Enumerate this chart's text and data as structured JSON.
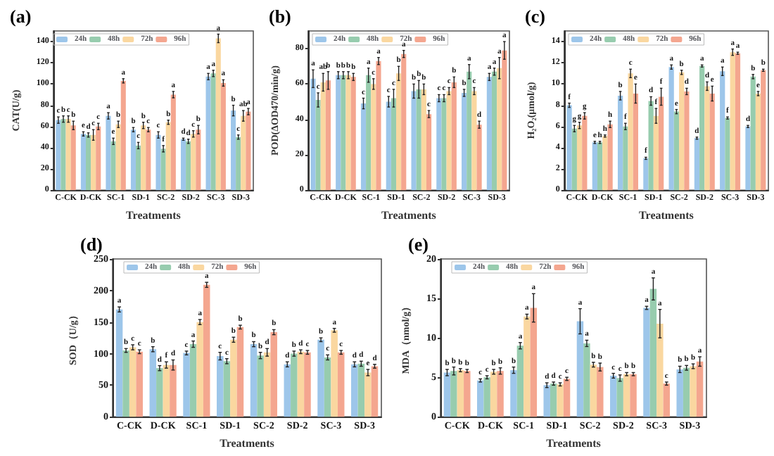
{
  "chart_data": [
    {
      "type": "bar",
      "title": "(a)",
      "xlabel": "Treatments",
      "ylabel": "CAT(U/g)",
      "categories": [
        "C-CK",
        "D-CK",
        "SC-1",
        "SD-1",
        "SC-2",
        "SD-2",
        "SC-3",
        "SD-3"
      ],
      "ylim": [
        0,
        150
      ],
      "yticks": [
        0,
        20,
        40,
        60,
        80,
        100,
        120,
        140
      ],
      "grid": false,
      "legend": "top left",
      "series": [
        {
          "name": "24h",
          "color": "#9dc6ea",
          "values": [
            66,
            53,
            70,
            57,
            52,
            48,
            107,
            75
          ],
          "errors": [
            3,
            2,
            3,
            2,
            3,
            1,
            3,
            5
          ],
          "value_labels": [
            "c",
            "e",
            "a",
            "b",
            "c",
            "d",
            "a",
            "b"
          ]
        },
        {
          "name": "48h",
          "color": "#97ccae",
          "values": [
            67,
            52,
            46,
            42,
            39,
            46,
            110,
            50
          ],
          "errors": [
            3,
            2,
            3,
            3,
            3,
            2,
            3,
            2
          ],
          "value_labels": [
            "b",
            "d",
            "e",
            "c",
            "f",
            "d",
            "a",
            "c"
          ]
        },
        {
          "name": "72h",
          "color": "#fad7a0",
          "values": [
            67,
            52,
            62,
            61,
            64,
            53,
            143,
            70
          ],
          "errors": [
            3,
            5,
            3,
            3,
            2,
            3,
            4,
            5
          ],
          "value_labels": [
            "c",
            "c",
            "b",
            "b",
            "b",
            "c",
            "a",
            "ab"
          ]
        },
        {
          "name": "96h",
          "color": "#f4a68f",
          "values": [
            61,
            60,
            103,
            57,
            90,
            57,
            101,
            74
          ],
          "errors": [
            4,
            3,
            2,
            2,
            3,
            4,
            3,
            3
          ],
          "value_labels": [
            "b",
            "c",
            "a",
            "c",
            "a",
            "b",
            "a",
            "a"
          ]
        }
      ]
    },
    {
      "type": "bar",
      "title": "(b)",
      "xlabel": "Treatments",
      "ylabel": "POD(ΔOD470/min/g)",
      "categories": [
        "C-CK",
        "D-CK",
        "SC-1",
        "SD-1",
        "SC-2",
        "SD-2",
        "SC-3",
        "SD-3"
      ],
      "ylim": [
        0,
        90
      ],
      "yticks": [
        0,
        20,
        40,
        60,
        80
      ],
      "grid": false,
      "legend": "top left",
      "series": [
        {
          "name": "24h",
          "color": "#9dc6ea",
          "values": [
            63,
            65,
            49,
            50,
            56,
            52,
            55,
            64
          ],
          "errors": [
            5,
            2,
            3,
            3,
            4,
            2,
            2,
            2
          ],
          "value_labels": [
            "a",
            "b",
            "c",
            "c",
            "b",
            "c",
            "b",
            "a"
          ]
        },
        {
          "name": "48h",
          "color": "#97ccae",
          "values": [
            51,
            65,
            65,
            52,
            57,
            52,
            67,
            67
          ],
          "errors": [
            4,
            2,
            4,
            5,
            5,
            2,
            4,
            2
          ],
          "value_labels": [
            "c",
            "b",
            "a",
            "c",
            "b",
            "c",
            "a",
            "a"
          ]
        },
        {
          "name": "72h",
          "color": "#fad7a0",
          "values": [
            61,
            65,
            60,
            66,
            57,
            56,
            56,
            69
          ],
          "errors": [
            5,
            2,
            3,
            4,
            3,
            2,
            2,
            6
          ],
          "value_labels": [
            "ab",
            "b",
            "c",
            "b",
            "b",
            "c",
            "c",
            "a"
          ]
        },
        {
          "name": "96h",
          "color": "#f4a68f",
          "values": [
            62,
            64,
            73,
            77,
            43,
            61,
            37,
            79
          ],
          "errors": [
            5,
            2,
            2,
            2,
            2,
            3,
            2,
            5
          ],
          "value_labels": [
            "b",
            "b",
            "a",
            "a",
            "c",
            "b",
            "d",
            "a"
          ]
        }
      ]
    },
    {
      "type": "bar",
      "title": "(c)",
      "xlabel": "Treatments",
      "ylabel": "H₂O₂(μmol/g)",
      "categories": [
        "C-CK",
        "D-CK",
        "SC-1",
        "SD-1",
        "SC-2",
        "SD-2",
        "SC-3",
        "SD-3"
      ],
      "ylim": [
        0,
        15
      ],
      "yticks": [
        0,
        2,
        4,
        6,
        8,
        10,
        12,
        14
      ],
      "grid": false,
      "legend": "top left",
      "series": [
        {
          "name": "24h",
          "color": "#9dc6ea",
          "values": [
            8.0,
            4.5,
            8.9,
            3.0,
            11.6,
            4.9,
            11.2,
            6.0
          ],
          "errors": [
            0.2,
            0.1,
            0.4,
            0.1,
            0.2,
            0.1,
            0.4,
            0.1
          ],
          "value_labels": [
            "f",
            "e",
            "b",
            "f",
            "a",
            "d",
            "a",
            "d"
          ]
        },
        {
          "name": "48h",
          "color": "#97ccae",
          "values": [
            5.8,
            4.5,
            6.0,
            8.4,
            7.4,
            11.7,
            6.8,
            10.7
          ],
          "errors": [
            0.3,
            0.1,
            0.3,
            0.4,
            0.2,
            0.1,
            0.1,
            0.2
          ],
          "value_labels": [
            "g",
            "h",
            "f",
            "d",
            "e",
            "a",
            "f",
            "b"
          ]
        },
        {
          "name": "72h",
          "color": "#fad7a0",
          "values": [
            6.1,
            5.1,
            11.0,
            7.0,
            11.1,
            9.8,
            13.0,
            9.1
          ],
          "errors": [
            0.3,
            0.1,
            0.4,
            0.7,
            0.2,
            0.4,
            0.3,
            0.2
          ],
          "value_labels": [
            "g",
            "h",
            "c",
            "f",
            "b",
            "d",
            "a",
            "e"
          ]
        },
        {
          "name": "96h",
          "color": "#f4a68f",
          "values": [
            7.0,
            6.2,
            9.1,
            8.8,
            9.3,
            9.1,
            12.9,
            11.3
          ],
          "errors": [
            0.3,
            0.3,
            0.9,
            0.8,
            0.3,
            0.7,
            0.1,
            0.1
          ],
          "value_labels": [
            "g",
            "h",
            "e",
            "f",
            "d",
            "e",
            "a",
            "b"
          ]
        }
      ]
    },
    {
      "type": "bar",
      "title": "(d)",
      "xlabel": "Treatments",
      "ylabel": "SOD（U/g）",
      "categories": [
        "C-CK",
        "D-CK",
        "SC-1",
        "SD-1",
        "SC-2",
        "SD-2",
        "SC-3",
        "SD-3"
      ],
      "ylim": [
        0,
        250
      ],
      "yticks": [
        0,
        50,
        100,
        150,
        200,
        250
      ],
      "grid": false,
      "legend": "top left",
      "series": [
        {
          "name": "24h",
          "color": "#9dc6ea",
          "values": [
            170,
            107,
            101,
            96,
            115,
            83,
            122,
            83
          ],
          "errors": [
            4,
            4,
            3,
            6,
            4,
            4,
            3,
            4
          ],
          "value_labels": [
            "a",
            "b",
            "c",
            "c",
            "b",
            "d",
            "b",
            "d"
          ]
        },
        {
          "name": "48h",
          "color": "#97ccae",
          "values": [
            105,
            77,
            115,
            88,
            97,
            100,
            94,
            84
          ],
          "errors": [
            3,
            4,
            5,
            4,
            5,
            4,
            4,
            4
          ],
          "value_labels": [
            "b",
            "d",
            "a",
            "c",
            "b",
            "b",
            "c",
            "d"
          ]
        },
        {
          "name": "72h",
          "color": "#fad7a0",
          "values": [
            110,
            82,
            150,
            122,
            102,
            103,
            137,
            70
          ],
          "errors": [
            4,
            5,
            4,
            4,
            6,
            3,
            3,
            5
          ],
          "value_labels": [
            "c",
            "f",
            "a",
            "b",
            "d",
            "d",
            "a",
            "e"
          ]
        },
        {
          "name": "96h",
          "color": "#f4a68f",
          "values": [
            103,
            82,
            209,
            142,
            134,
            102,
            102,
            80
          ],
          "errors": [
            3,
            8,
            4,
            3,
            4,
            3,
            3,
            3
          ],
          "value_labels": [
            "c",
            "d",
            "a",
            "b",
            "b",
            "c",
            "c",
            "d"
          ]
        }
      ]
    },
    {
      "type": "bar",
      "title": "(e)",
      "xlabel": "Treatments",
      "ylabel": "MDA（nmol/g）",
      "categories": [
        "C-CK",
        "D-CK",
        "SC-1",
        "SD-1",
        "SC-2",
        "SD-2",
        "SC-3",
        "SD-3"
      ],
      "ylim": [
        0,
        20
      ],
      "yticks": [
        0,
        5,
        10,
        15,
        20
      ],
      "grid": false,
      "legend": "top left",
      "series": [
        {
          "name": "24h",
          "color": "#9dc6ea",
          "values": [
            5.6,
            4.6,
            5.9,
            4.0,
            12.1,
            5.2,
            13.8,
            6.0
          ],
          "errors": [
            0.4,
            0.2,
            0.4,
            0.3,
            1.6,
            0.3,
            0.2,
            0.4
          ],
          "value_labels": [
            "b",
            "c",
            "b",
            "d",
            "a",
            "c",
            "a",
            "b"
          ]
        },
        {
          "name": "48h",
          "color": "#97ccae",
          "values": [
            5.8,
            5.0,
            9.0,
            4.2,
            9.3,
            4.9,
            16.2,
            6.2
          ],
          "errors": [
            0.5,
            0.2,
            0.4,
            0.2,
            0.4,
            0.4,
            1.4,
            0.3
          ],
          "value_labels": [
            "b",
            "c",
            "a",
            "d",
            "a",
            "c",
            "a",
            "b"
          ]
        },
        {
          "name": "72h",
          "color": "#fad7a0",
          "values": [
            5.9,
            5.7,
            12.7,
            4.1,
            6.6,
            5.4,
            11.8,
            6.4
          ],
          "errors": [
            0.2,
            0.3,
            0.3,
            0.2,
            0.3,
            0.2,
            1.8,
            0.3
          ],
          "value_labels": [
            "b",
            "b",
            "a",
            "c",
            "b",
            "b",
            "a",
            "b"
          ]
        },
        {
          "name": "96h",
          "color": "#f4a68f",
          "values": [
            5.8,
            5.8,
            13.8,
            4.8,
            6.3,
            5.4,
            4.2,
            7.0
          ],
          "errors": [
            0.2,
            0.4,
            1.8,
            0.2,
            0.5,
            0.2,
            0.2,
            0.6
          ],
          "value_labels": [
            "b",
            "b",
            "a",
            "c",
            "b",
            "b",
            "c",
            "a"
          ]
        }
      ]
    }
  ]
}
